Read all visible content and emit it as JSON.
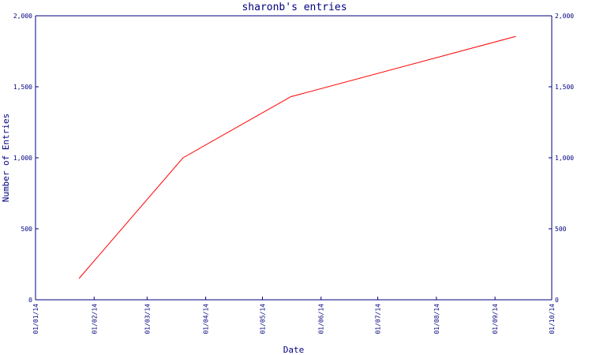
{
  "chart_data": {
    "type": "line",
    "title": "sharonb's entries",
    "xlabel": "Date",
    "ylabel": "Number of Entries",
    "x_ticks": [
      "01/01/14",
      "01/02/14",
      "01/03/14",
      "01/04/14",
      "01/05/14",
      "01/06/14",
      "01/07/14",
      "01/08/14",
      "01/09/14",
      "01/10/14"
    ],
    "y_ticks": [
      "0",
      "500",
      "1,000",
      "1,500",
      "2,000"
    ],
    "xlim": [
      "2014-01-01",
      "2014-10-01"
    ],
    "ylim": [
      0,
      2000
    ],
    "grid": false,
    "secondary_y_axis": true,
    "colors": {
      "axis": "#000080",
      "series": "#ff0000",
      "background": "#ffffff"
    },
    "series": [
      {
        "x": [
          "2014-01-24",
          "2014-03-20",
          "2014-05-16",
          "2014-09-12"
        ],
        "y": [
          150,
          1000,
          1430,
          1855
        ]
      }
    ]
  }
}
